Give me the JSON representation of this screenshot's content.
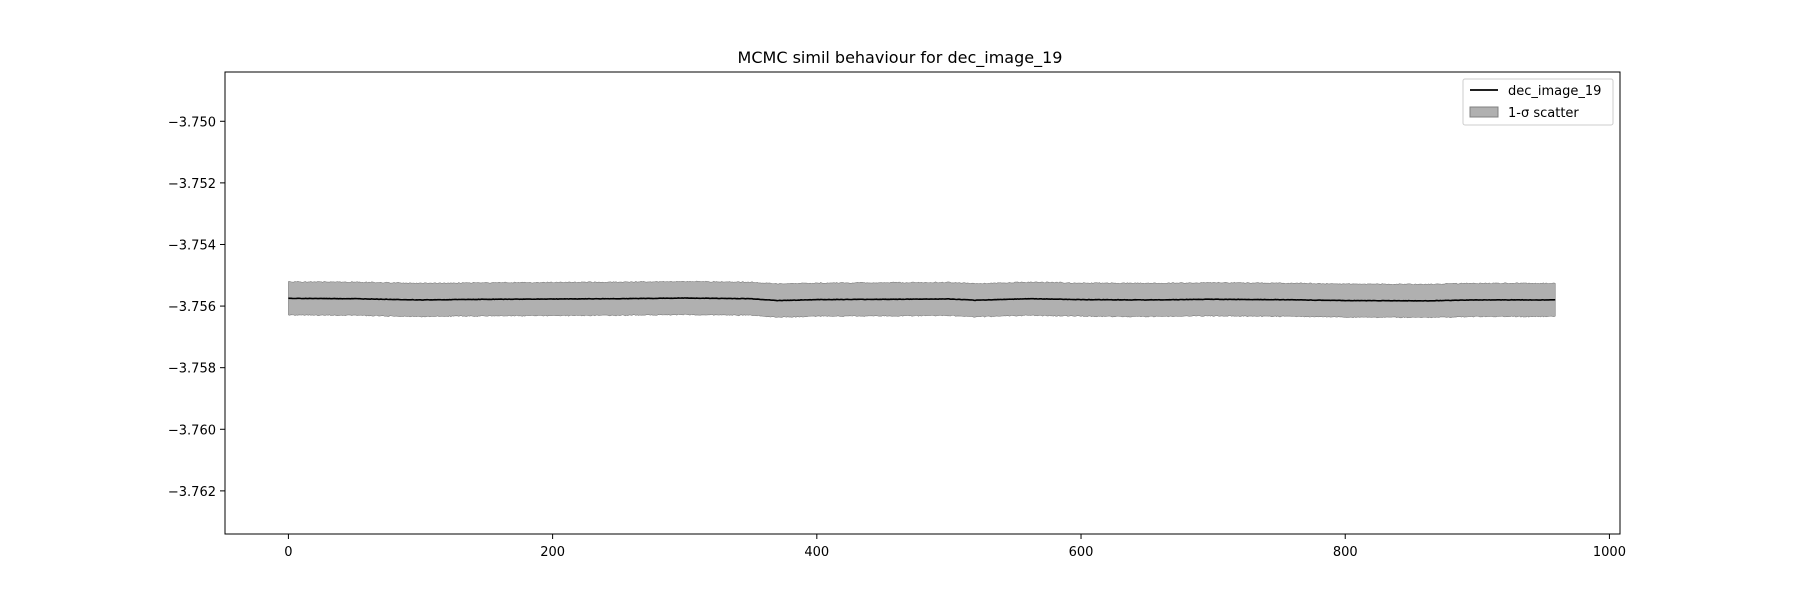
{
  "chart_data": {
    "type": "line",
    "title": "MCMC simil behaviour for dec_image_19",
    "xlabel": "",
    "ylabel": "",
    "xlim": [
      -48,
      1008
    ],
    "ylim": [
      -3.7634,
      -3.7484
    ],
    "xticks": [
      0,
      200,
      400,
      600,
      800,
      1000
    ],
    "xtick_labels": [
      "0",
      "200",
      "400",
      "600",
      "800",
      "1000"
    ],
    "yticks": [
      -3.75,
      -3.752,
      -3.754,
      -3.756,
      -3.758,
      -3.76,
      -3.762
    ],
    "ytick_labels": [
      "−3.750",
      "−3.752",
      "−3.754",
      "−3.756",
      "−3.758",
      "−3.760",
      "−3.762"
    ],
    "grid": false,
    "legend_position": "top-right",
    "series": [
      {
        "name": "dec_image_19",
        "kind": "line",
        "color": "#000000",
        "x_start": 0,
        "x_end": 959,
        "keypoints": [
          [
            0,
            -3.75575
          ],
          [
            50,
            -3.75576
          ],
          [
            100,
            -3.7558
          ],
          [
            150,
            -3.75578
          ],
          [
            200,
            -3.75577
          ],
          [
            250,
            -3.75576
          ],
          [
            300,
            -3.75574
          ],
          [
            350,
            -3.75576
          ],
          [
            370,
            -3.75582
          ],
          [
            400,
            -3.75579
          ],
          [
            450,
            -3.75578
          ],
          [
            500,
            -3.75577
          ],
          [
            520,
            -3.75581
          ],
          [
            560,
            -3.75576
          ],
          [
            600,
            -3.75579
          ],
          [
            650,
            -3.7558
          ],
          [
            700,
            -3.75578
          ],
          [
            750,
            -3.75579
          ],
          [
            800,
            -3.75582
          ],
          [
            860,
            -3.75583
          ],
          [
            900,
            -3.7558
          ],
          [
            959,
            -3.7558
          ]
        ]
      },
      {
        "name": "1-σ scatter",
        "kind": "band",
        "color": "#b0b0b0",
        "edge_color": "#808080",
        "half_width": 0.00054
      }
    ]
  }
}
